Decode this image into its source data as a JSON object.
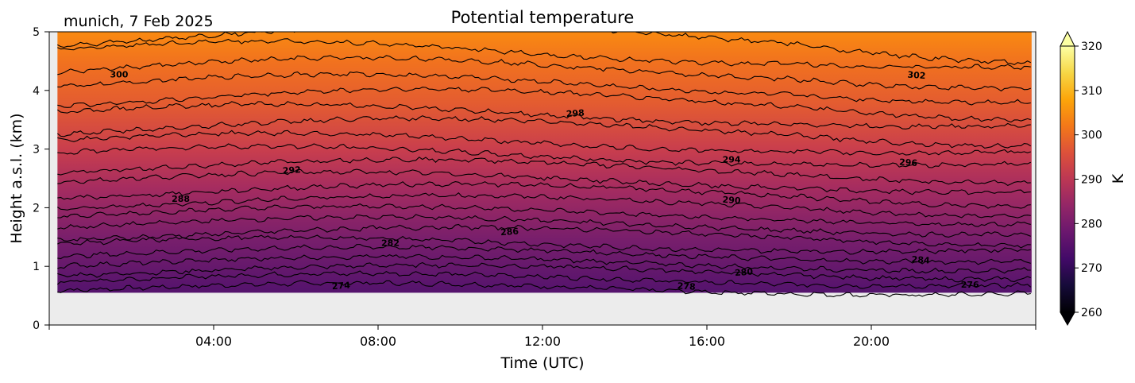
{
  "header": {
    "location_date": "munich, 7 Feb 2025",
    "title": "Potential temperature"
  },
  "chart_data": {
    "type": "heatmap",
    "title": "Potential temperature",
    "subtitle": "munich, 7 Feb 2025",
    "xlabel": "Time (UTC)",
    "ylabel": "Height a.s.l. (km)",
    "xlim": [
      0,
      24
    ],
    "ylim": [
      0,
      5
    ],
    "x_ticks": [
      4,
      8,
      12,
      16,
      20
    ],
    "x_tick_labels": [
      "04:00",
      "08:00",
      "12:00",
      "16:00",
      "20:00"
    ],
    "y_ticks": [
      0,
      1,
      2,
      3,
      4,
      5
    ],
    "y_tick_labels": [
      "0",
      "1",
      "2",
      "3",
      "4",
      "5"
    ],
    "data_extent": {
      "x": [
        0.2,
        23.9
      ],
      "y": [
        0.55,
        5
      ]
    },
    "missing_color": "#ececec",
    "colormap": "inferno",
    "colorbar": {
      "label": "K",
      "range": [
        260,
        320
      ],
      "ticks": [
        260,
        270,
        280,
        290,
        300,
        310,
        320
      ],
      "tick_labels": [
        "260",
        "270",
        "280",
        "290",
        "300",
        "310",
        "320"
      ],
      "extend": "both"
    },
    "contour_interval_K": 2,
    "contour_labels": [
      {
        "text": "274",
        "x": 7.1,
        "y": 0.66
      },
      {
        "text": "276",
        "x": 22.4,
        "y": 0.68
      },
      {
        "text": "278",
        "x": 15.5,
        "y": 0.65
      },
      {
        "text": "280",
        "x": 16.9,
        "y": 0.89
      },
      {
        "text": "282",
        "x": 8.3,
        "y": 1.39
      },
      {
        "text": "284",
        "x": 21.2,
        "y": 1.1
      },
      {
        "text": "286",
        "x": 11.2,
        "y": 1.58
      },
      {
        "text": "288",
        "x": 3.2,
        "y": 2.14
      },
      {
        "text": "290",
        "x": 16.6,
        "y": 2.12
      },
      {
        "text": "292",
        "x": 5.9,
        "y": 2.63
      },
      {
        "text": "294",
        "x": 16.6,
        "y": 2.81
      },
      {
        "text": "296",
        "x": 20.9,
        "y": 2.76
      },
      {
        "text": "298",
        "x": 12.8,
        "y": 3.6
      },
      {
        "text": "300",
        "x": 1.7,
        "y": 4.26
      },
      {
        "text": "302",
        "x": 21.1,
        "y": 4.25
      }
    ]
  }
}
